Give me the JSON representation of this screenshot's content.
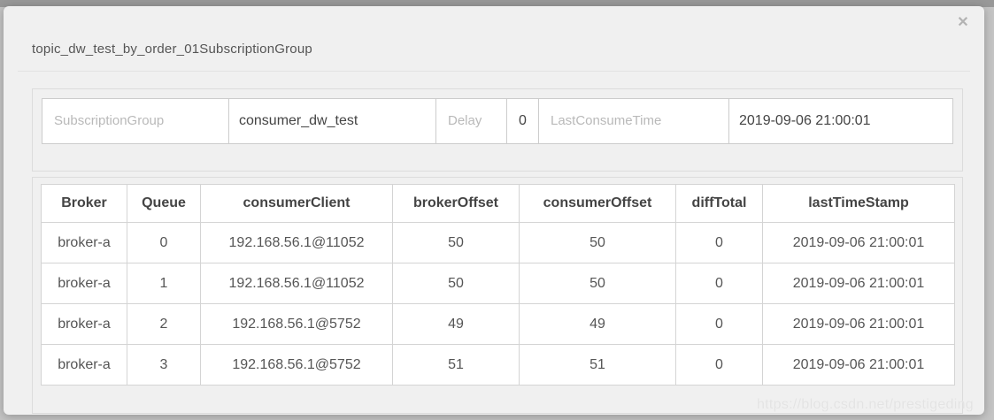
{
  "page": {
    "watermark": "https://blog.csdn.net/prestigeding"
  },
  "modal": {
    "title": "topic_dw_test_by_order_01SubscriptionGroup",
    "close_glyph": "✕",
    "fields": [
      {
        "label": "SubscriptionGroup",
        "value": "consumer_dw_test"
      },
      {
        "label": "Delay",
        "value": "0"
      },
      {
        "label": "LastConsumeTime",
        "value": "2019-09-06 21:00:01"
      }
    ],
    "table": {
      "columns": [
        "Broker",
        "Queue",
        "consumerClient",
        "brokerOffset",
        "consumerOffset",
        "diffTotal",
        "lastTimeStamp"
      ],
      "rows": [
        [
          "broker-a",
          "0",
          "192.168.56.1@11052",
          "50",
          "50",
          "0",
          "2019-09-06 21:00:01"
        ],
        [
          "broker-a",
          "1",
          "192.168.56.1@11052",
          "50",
          "50",
          "0",
          "2019-09-06 21:00:01"
        ],
        [
          "broker-a",
          "2",
          "192.168.56.1@5752",
          "49",
          "49",
          "0",
          "2019-09-06 21:00:01"
        ],
        [
          "broker-a",
          "3",
          "192.168.56.1@5752",
          "51",
          "51",
          "0",
          "2019-09-06 21:00:01"
        ]
      ]
    }
  },
  "colors": {
    "backdrop_top": "#989898",
    "backdrop": "#c4c4c4",
    "modal_bg": "#f0f0f0",
    "panel_border": "#dcdcdc",
    "cell_border": "#cccccc",
    "label_text": "#b9b9b9",
    "value_text": "#444444",
    "table_text": "#555555"
  }
}
